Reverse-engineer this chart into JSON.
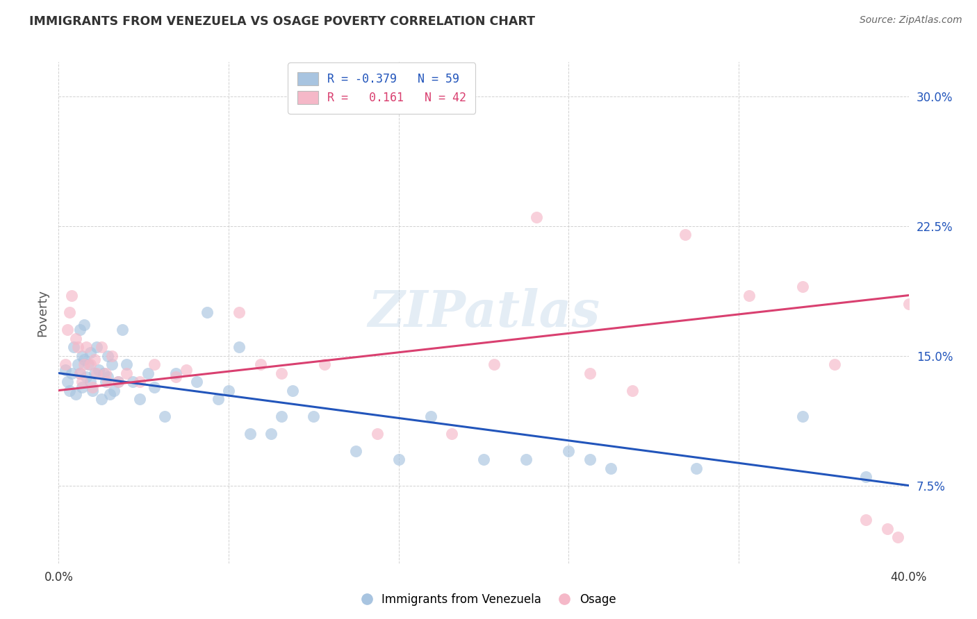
{
  "title": "IMMIGRANTS FROM VENEZUELA VS OSAGE POVERTY CORRELATION CHART",
  "source": "Source: ZipAtlas.com",
  "ylabel": "Poverty",
  "xlim": [
    0.0,
    40.0
  ],
  "ylim": [
    3.0,
    32.0
  ],
  "yticks": [
    7.5,
    15.0,
    22.5,
    30.0
  ],
  "ytick_labels": [
    "7.5%",
    "15.0%",
    "22.5%",
    "30.0%"
  ],
  "xticks": [
    0.0,
    8.0,
    16.0,
    24.0,
    32.0,
    40.0
  ],
  "xtick_labels": [
    "0.0%",
    "",
    "",
    "",
    "",
    "40.0%"
  ],
  "blue_color": "#a8c4e0",
  "blue_line_color": "#2255bb",
  "pink_color": "#f5b8c8",
  "pink_line_color": "#d94070",
  "legend_blue_label": "R = -0.379   N = 59",
  "legend_pink_label": "R =   0.161   N = 42",
  "watermark": "ZIPatlas",
  "blue_line_x0": 0.0,
  "blue_line_y0": 14.0,
  "blue_line_x1": 40.0,
  "blue_line_y1": 7.5,
  "pink_line_x0": 0.0,
  "pink_line_y0": 13.0,
  "pink_line_x1": 40.0,
  "pink_line_y1": 18.5,
  "blue_scatter_x": [
    0.3,
    0.4,
    0.5,
    0.6,
    0.7,
    0.8,
    0.9,
    1.0,
    1.0,
    1.1,
    1.1,
    1.2,
    1.2,
    1.3,
    1.4,
    1.5,
    1.5,
    1.6,
    1.7,
    1.8,
    1.9,
    2.0,
    2.1,
    2.2,
    2.3,
    2.3,
    2.4,
    2.5,
    2.6,
    2.8,
    3.0,
    3.2,
    3.5,
    3.8,
    4.2,
    4.5,
    5.0,
    5.5,
    6.5,
    7.0,
    7.5,
    8.0,
    8.5,
    9.0,
    10.0,
    10.5,
    11.0,
    12.0,
    14.0,
    16.0,
    17.5,
    20.0,
    22.0,
    24.0,
    25.0,
    26.0,
    30.0,
    35.0,
    38.0
  ],
  "blue_scatter_y": [
    14.2,
    13.5,
    13.0,
    14.0,
    15.5,
    12.8,
    14.5,
    14.0,
    16.5,
    15.0,
    13.2,
    14.8,
    16.8,
    13.8,
    14.5,
    13.5,
    15.2,
    13.0,
    14.0,
    15.5,
    14.2,
    12.5,
    14.0,
    13.5,
    15.0,
    13.8,
    12.8,
    14.5,
    13.0,
    13.5,
    16.5,
    14.5,
    13.5,
    12.5,
    14.0,
    13.2,
    11.5,
    14.0,
    13.5,
    17.5,
    12.5,
    13.0,
    15.5,
    10.5,
    10.5,
    11.5,
    13.0,
    11.5,
    9.5,
    9.0,
    11.5,
    9.0,
    9.0,
    9.5,
    9.0,
    8.5,
    8.5,
    11.5,
    8.0
  ],
  "pink_scatter_x": [
    0.3,
    0.4,
    0.5,
    0.6,
    0.8,
    0.9,
    1.0,
    1.1,
    1.2,
    1.3,
    1.5,
    1.6,
    1.7,
    1.8,
    2.0,
    2.2,
    2.3,
    2.5,
    2.8,
    3.2,
    3.8,
    4.5,
    5.5,
    6.0,
    8.5,
    9.5,
    10.5,
    12.5,
    15.0,
    18.5,
    20.5,
    22.5,
    25.0,
    27.0,
    29.5,
    32.5,
    35.0,
    36.5,
    38.0,
    39.0,
    39.5,
    40.0
  ],
  "pink_scatter_y": [
    14.5,
    16.5,
    17.5,
    18.5,
    16.0,
    15.5,
    14.0,
    13.5,
    14.5,
    15.5,
    14.5,
    13.2,
    14.8,
    14.0,
    15.5,
    14.0,
    13.5,
    15.0,
    13.5,
    14.0,
    13.5,
    14.5,
    13.8,
    14.2,
    17.5,
    14.5,
    14.0,
    14.5,
    10.5,
    10.5,
    14.5,
    23.0,
    14.0,
    13.0,
    22.0,
    18.5,
    19.0,
    14.5,
    5.5,
    5.0,
    4.5,
    18.0
  ]
}
